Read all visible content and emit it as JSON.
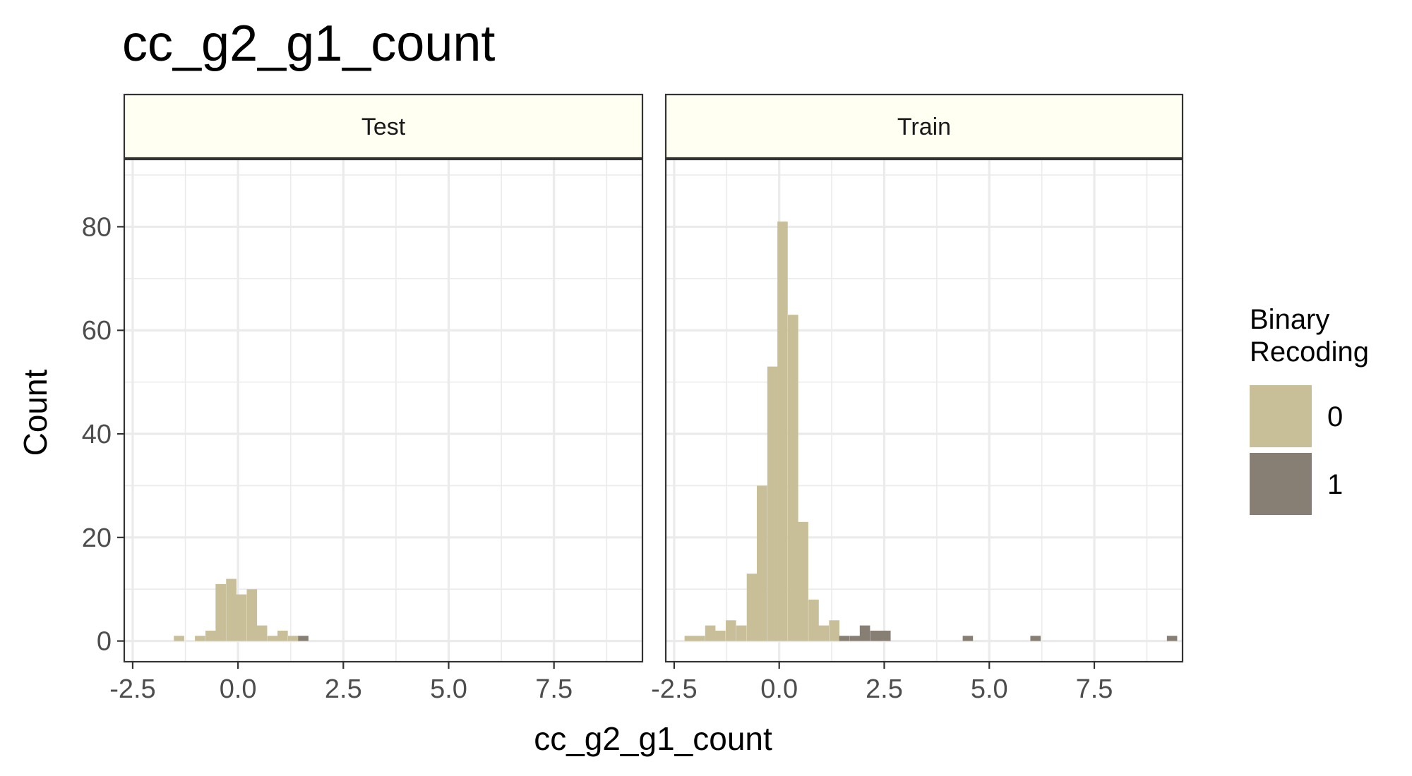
{
  "chart_data": {
    "type": "bar",
    "title": "cc_g2_g1_count",
    "xlabel": "cc_g2_g1_count",
    "ylabel": "Count",
    "xlim": [
      -2.7,
      9.6
    ],
    "ylim": [
      -4,
      93
    ],
    "x_ticks": [
      -2.5,
      0.0,
      2.5,
      5.0,
      7.5
    ],
    "x_tick_labels": [
      "-2.5",
      "0.0",
      "2.5",
      "5.0",
      "7.5"
    ],
    "y_ticks": [
      0,
      20,
      40,
      60,
      80
    ],
    "y_tick_labels": [
      "0",
      "20",
      "40",
      "60",
      "80"
    ],
    "grid": true,
    "bin_width": 0.245,
    "colors": {
      "0": "#c8bf98",
      "1": "#877f73",
      "strip_fill": "#fffff2",
      "grid": "#ebebeb"
    },
    "legend": {
      "title_lines": [
        "Binary",
        "Recoding"
      ],
      "entries": [
        {
          "key": "0",
          "label": "0"
        },
        {
          "key": "1",
          "label": "1"
        }
      ],
      "position": "right"
    },
    "facets": [
      {
        "label": "Test",
        "bars": [
          {
            "x": -1.4,
            "y": 1,
            "group": "0"
          },
          {
            "x": -0.9,
            "y": 1,
            "group": "0"
          },
          {
            "x": -0.65,
            "y": 2,
            "group": "0"
          },
          {
            "x": -0.41,
            "y": 11,
            "group": "0"
          },
          {
            "x": -0.16,
            "y": 12,
            "group": "0"
          },
          {
            "x": 0.08,
            "y": 9,
            "group": "0"
          },
          {
            "x": 0.33,
            "y": 10,
            "group": "0"
          },
          {
            "x": 0.57,
            "y": 3,
            "group": "0"
          },
          {
            "x": 0.82,
            "y": 1,
            "group": "0"
          },
          {
            "x": 1.06,
            "y": 2,
            "group": "0"
          },
          {
            "x": 1.31,
            "y": 1,
            "group": "0"
          },
          {
            "x": 1.55,
            "y": 1,
            "group": "1"
          }
        ]
      },
      {
        "label": "Train",
        "bars": [
          {
            "x": -2.13,
            "y": 1,
            "group": "0"
          },
          {
            "x": -1.89,
            "y": 1,
            "group": "0"
          },
          {
            "x": -1.64,
            "y": 3,
            "group": "0"
          },
          {
            "x": -1.4,
            "y": 2,
            "group": "0"
          },
          {
            "x": -1.15,
            "y": 4,
            "group": "0"
          },
          {
            "x": -0.9,
            "y": 3,
            "group": "0"
          },
          {
            "x": -0.65,
            "y": 13,
            "group": "0"
          },
          {
            "x": -0.41,
            "y": 30,
            "group": "0"
          },
          {
            "x": -0.16,
            "y": 53,
            "group": "0"
          },
          {
            "x": 0.08,
            "y": 81,
            "group": "0"
          },
          {
            "x": 0.33,
            "y": 63,
            "group": "0"
          },
          {
            "x": 0.57,
            "y": 23,
            "group": "0"
          },
          {
            "x": 0.82,
            "y": 8,
            "group": "0"
          },
          {
            "x": 1.06,
            "y": 3,
            "group": "0"
          },
          {
            "x": 1.31,
            "y": 4,
            "group": "0"
          },
          {
            "x": 1.55,
            "y": 1,
            "group": "1"
          },
          {
            "x": 1.8,
            "y": 1,
            "group": "1"
          },
          {
            "x": 2.04,
            "y": 3,
            "group": "1"
          },
          {
            "x": 2.29,
            "y": 2,
            "group": "1"
          },
          {
            "x": 2.53,
            "y": 2,
            "group": "1"
          },
          {
            "x": 4.49,
            "y": 1,
            "group": "1"
          },
          {
            "x": 6.1,
            "y": 1,
            "group": "1"
          },
          {
            "x": 9.35,
            "y": 1,
            "group": "1"
          }
        ]
      }
    ]
  }
}
